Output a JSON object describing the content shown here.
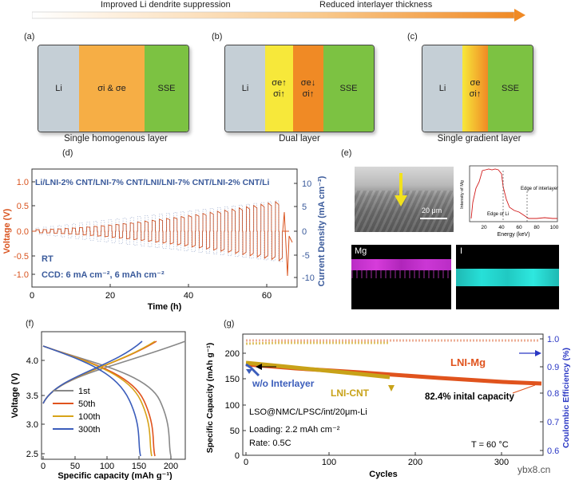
{
  "header": {
    "left_text": "Improved Li dendrite suppression",
    "right_text": "Reduced interlayer thickness"
  },
  "colors": {
    "li_gray": "#c5cfd6",
    "orange_layer": "#f6ae45",
    "yellow_layer": "#f7e83a",
    "dark_orange_layer": "#f08a25",
    "sse_green": "#7cc242",
    "volt_red": "#d9531e",
    "density_blue": "#3a5a9b",
    "mg_magenta": "#e23fe6",
    "i_cyan": "#27e0d8"
  },
  "schematics": {
    "a": {
      "letter": "(a)",
      "li": "Li",
      "middle": "σi & σe",
      "sse": "SSE",
      "caption": "Single homogenous layer"
    },
    "b": {
      "letter": "(b)",
      "li": "Li",
      "layer1_top": "σe↑",
      "layer1_bot": "σi↑",
      "layer2_top": "σe↓",
      "layer2_bot": "σi↑",
      "sse": "SSE",
      "caption": "Dual layer"
    },
    "c": {
      "letter": "(c)",
      "li": "Li",
      "grad_top": "σe",
      "grad_bot": "σi↑",
      "sse": "SSE",
      "caption": "Single gradient layer"
    }
  },
  "panel_d": {
    "letter": "(d)",
    "title": "Li/LNI-2% CNT/LNI-7% CNT/LNI/LNI-7% CNT/LNI-2% CNT/Li",
    "rt": "RT",
    "ccd": "CCD: 6 mA cm⁻², 6 mAh cm⁻²",
    "xlabel": "Time (h)",
    "ylabel_left": "Voltage (V)",
    "ylabel_right": "Current Density (mA cm⁻²)",
    "x_ticks": [
      "0",
      "20",
      "40",
      "60"
    ],
    "y_left_ticks": [
      "1.0",
      "0.5",
      "0.0",
      "-0.5",
      "-1.0"
    ],
    "y_right_ticks": [
      "10",
      "5",
      "0",
      "-5",
      "-10"
    ]
  },
  "panel_e": {
    "letter": "(e)",
    "scale_bar": "20 μm",
    "eds_xlabel": "Energy (keV)",
    "eds_ylabel": "Intensity of Mg",
    "eds_x_ticks": [
      "20",
      "40",
      "60",
      "80",
      "100"
    ],
    "edge_li": "Edge of Li",
    "edge_interlayer": "Edge of interlayer",
    "map_mg": "Mg",
    "map_i": "I"
  },
  "panel_f": {
    "letter": "(f)",
    "xlabel": "Specific capacity (mAh g⁻¹)",
    "ylabel": "Voltage (V)",
    "x_ticks": [
      "0",
      "50",
      "100",
      "150",
      "200"
    ],
    "y_ticks": [
      "4.0",
      "3.5",
      "3.0",
      "2.5"
    ],
    "legend": [
      {
        "label": "1st",
        "color": "#888888"
      },
      {
        "label": "50th",
        "color": "#e0531d"
      },
      {
        "label": "100th",
        "color": "#d7a318"
      },
      {
        "label": "300th",
        "color": "#3b5dbb"
      }
    ]
  },
  "panel_g": {
    "letter": "(g)",
    "xlabel": "Cycles",
    "ylabel_left": "Specific Capacity (mAh g⁻¹)",
    "ylabel_right": "Coulombic Efficiency (%)",
    "x_ticks": [
      "0",
      "100",
      "200",
      "300"
    ],
    "y_left_ticks": [
      "200",
      "150",
      "100",
      "50",
      "0"
    ],
    "y_right_ticks": [
      "1.0",
      "0.9",
      "0.8",
      "0.7",
      "0.6"
    ],
    "lni_mg": "LNI-Mg",
    "wo_interlayer": "w/o Interlayer",
    "lni_cnt": "LNI-CNT",
    "retention": "82.4% inital capacity",
    "cell": "LSO@NMC/LPSC/int/20μm-Li",
    "loading": "Loading: 2.2 mAh cm⁻²",
    "rate": "Rate: 0.5C",
    "temp": "T = 60 °C"
  },
  "watermark": "ybx8.cn"
}
